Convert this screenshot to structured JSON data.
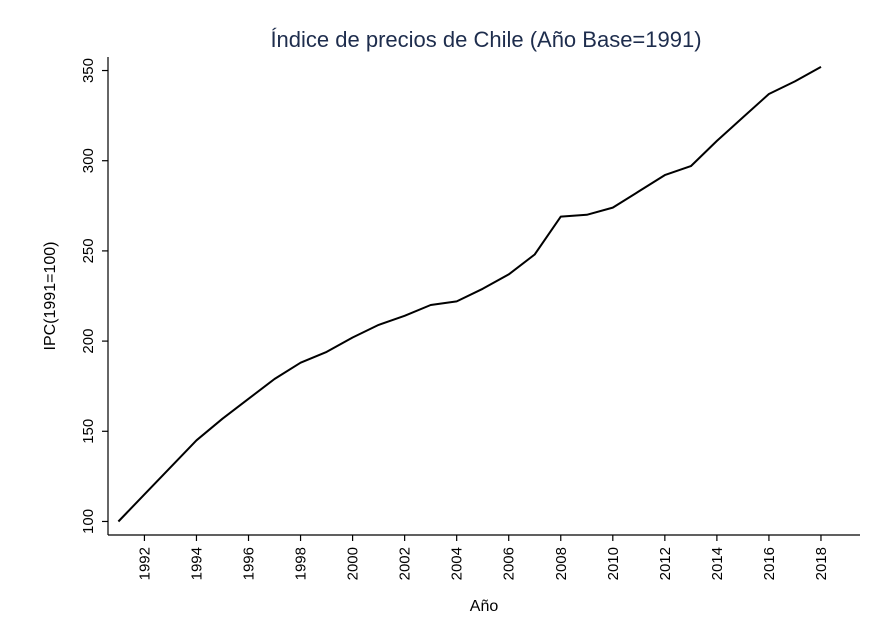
{
  "chart_data": {
    "type": "line",
    "title": "Índice de precios de Chile (Año Base=1991)",
    "xlabel": "Año",
    "ylabel": "IPC(1991=100)",
    "xlim": [
      1990.6,
      2019.5
    ],
    "ylim": [
      92.5,
      357.5
    ],
    "x_ticks": [
      "1992",
      "1994",
      "1996",
      "1998",
      "2000",
      "2002",
      "2004",
      "2006",
      "2008",
      "2010",
      "2012",
      "2014",
      "2016",
      "2018"
    ],
    "y_ticks": [
      "100",
      "150",
      "200",
      "250",
      "300",
      "350"
    ],
    "grid": false,
    "series": [
      {
        "x": [
          1991,
          1992,
          1993,
          1994,
          1995,
          1996,
          1997,
          1998,
          1999,
          2000,
          2001,
          2002,
          2003,
          2004,
          2005,
          2006,
          2007,
          2008,
          2009,
          2010,
          2011,
          2012,
          2013,
          2014,
          2015,
          2016,
          2017,
          2018
        ],
        "values": [
          100,
          115,
          130,
          145,
          157,
          168,
          179,
          188,
          194,
          202,
          209,
          214,
          220,
          222,
          229,
          237,
          248,
          269,
          270,
          274,
          283,
          292,
          297,
          311,
          324,
          337,
          344,
          352
        ]
      }
    ],
    "color": "#000000"
  }
}
